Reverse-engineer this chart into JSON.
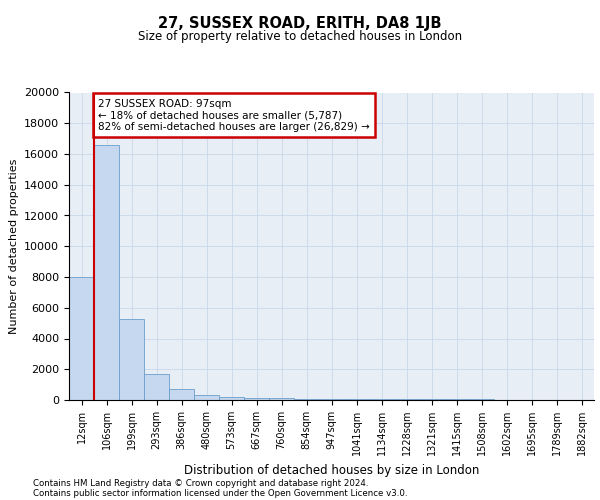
{
  "title": "27, SUSSEX ROAD, ERITH, DA8 1JB",
  "subtitle": "Size of property relative to detached houses in London",
  "xlabel": "Distribution of detached houses by size in London",
  "ylabel": "Number of detached properties",
  "bar_values": [
    8000,
    16600,
    5250,
    1700,
    700,
    350,
    200,
    130,
    100,
    80,
    70,
    60,
    55,
    50,
    45,
    40,
    35,
    30,
    25,
    20,
    18
  ],
  "bar_labels": [
    "12sqm",
    "106sqm",
    "199sqm",
    "293sqm",
    "386sqm",
    "480sqm",
    "573sqm",
    "667sqm",
    "760sqm",
    "854sqm",
    "947sqm",
    "1041sqm",
    "1134sqm",
    "1228sqm",
    "1321sqm",
    "1415sqm",
    "1508sqm",
    "1602sqm",
    "1695sqm",
    "1789sqm",
    "1882sqm"
  ],
  "property_line_x": 1.0,
  "annotation_line1": "27 SUSSEX ROAD: 97sqm",
  "annotation_line2": "← 18% of detached houses are smaller (5,787)",
  "annotation_line3": "82% of semi-detached houses are larger (26,829) →",
  "annotation_box_color": "#ffffff",
  "annotation_border_color": "#cc0000",
  "bar_color": "#c5d8ef",
  "bar_edge_color": "#6b9fcc",
  "line_color": "#cc0000",
  "grid_color": "#c8d8e8",
  "bg_color": "#e8eef6",
  "ylim": [
    0,
    20000
  ],
  "yticks": [
    0,
    2000,
    4000,
    6000,
    8000,
    10000,
    12000,
    14000,
    16000,
    18000,
    20000
  ],
  "footer_line1": "Contains HM Land Registry data © Crown copyright and database right 2024.",
  "footer_line2": "Contains public sector information licensed under the Open Government Licence v3.0."
}
